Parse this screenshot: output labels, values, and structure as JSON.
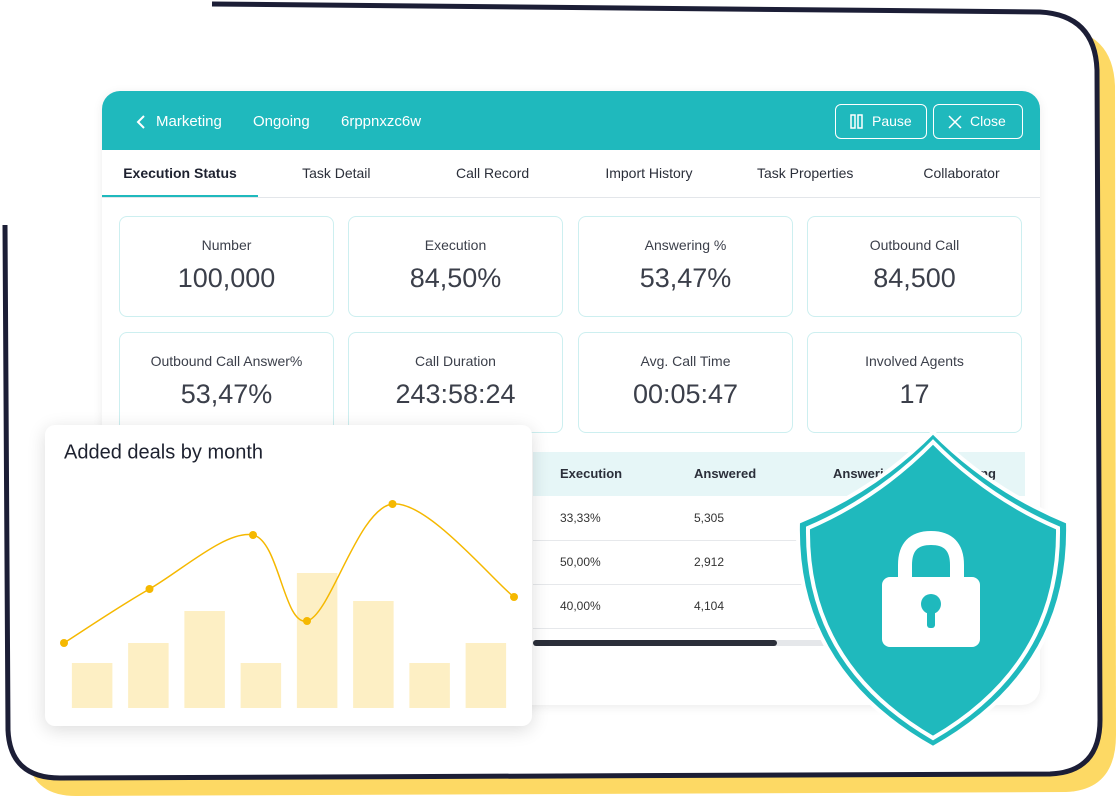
{
  "header": {
    "back": "Marketing",
    "status": "Ongoing",
    "task_id": "6rppnxzc6w",
    "pause": "Pause",
    "close": "Close"
  },
  "tabs": [
    "Execution Status",
    "Task Detail",
    "Call Record",
    "Import History",
    "Task Properties",
    "Collaborator"
  ],
  "stats": [
    {
      "label": "Number",
      "value": "100,000"
    },
    {
      "label": "Execution",
      "value": "84,50%"
    },
    {
      "label": "Answering %",
      "value": "53,47%"
    },
    {
      "label": "Outbound Call",
      "value": "84,500"
    },
    {
      "label": "Outbound Call Answer%",
      "value": "53,47%"
    },
    {
      "label": "Call Duration",
      "value": "243:58:24"
    },
    {
      "label": "Avg. Call Time",
      "value": "00:05:47"
    },
    {
      "label": "Involved Agents",
      "value": "17"
    }
  ],
  "table": {
    "columns": [
      "Execution",
      "Answered",
      "Answering",
      "Ong"
    ],
    "rows": [
      [
        "33,33%",
        "5,305"
      ],
      [
        "50,00%",
        "2,912"
      ],
      [
        "40,00%",
        "4,104"
      ]
    ]
  },
  "chart_data": {
    "type": "combo",
    "title": "Added deals by month",
    "ylim": [
      0,
      210
    ],
    "xlim": [
      0,
      100
    ],
    "bars": {
      "color": "#fdefc4",
      "values": [
        45,
        65,
        97,
        45,
        135,
        107,
        45,
        65
      ]
    },
    "line": {
      "color": "#f5b800",
      "x": [
        0,
        19,
        42,
        54,
        73,
        100
      ],
      "values": [
        65,
        119,
        173,
        87,
        204,
        111
      ]
    }
  }
}
